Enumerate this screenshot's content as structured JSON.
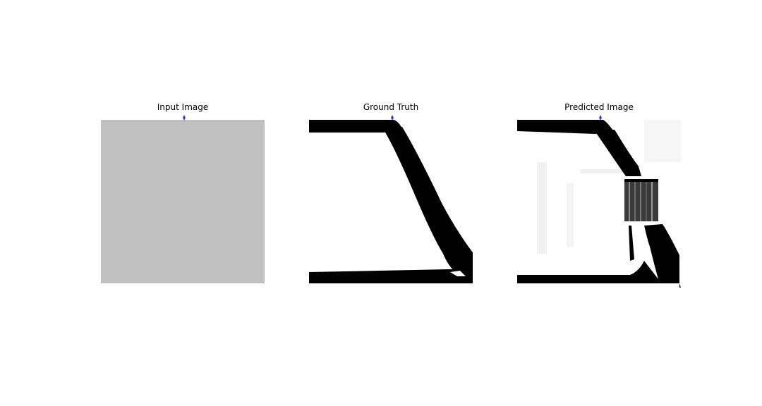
{
  "panels": [
    {
      "title": "Input Image"
    },
    {
      "title": "Ground Truth"
    },
    {
      "title": "Predicted Image"
    }
  ],
  "colors": {
    "input_gray": "#c0c0c0",
    "structure": "#000000",
    "load_marker": "#3a3ad0",
    "background": "#ffffff"
  }
}
